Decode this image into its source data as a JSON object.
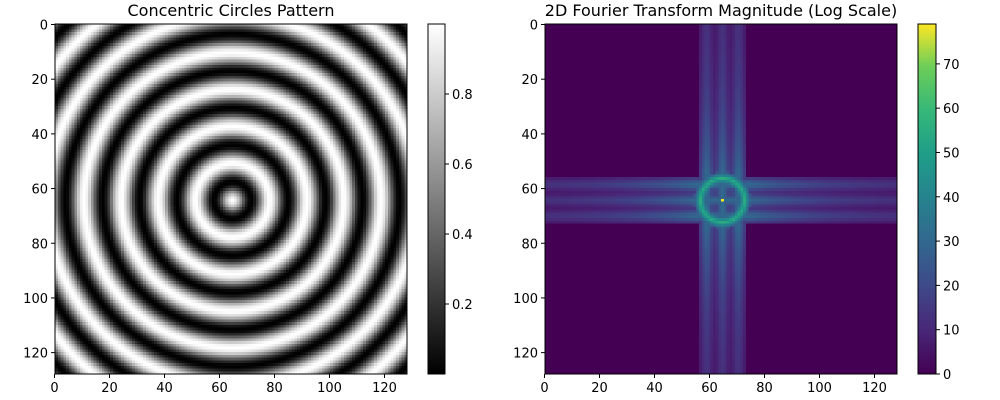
{
  "chart_data": [
    {
      "type": "heatmap",
      "title": "Concentric Circles Pattern",
      "xlabel": "",
      "ylabel": "",
      "shape": [
        128,
        128
      ],
      "xlim": [
        0,
        128
      ],
      "ylim": [
        128,
        0
      ],
      "x_ticks": [
        0,
        20,
        40,
        60,
        80,
        100,
        120
      ],
      "y_ticks": [
        0,
        20,
        40,
        60,
        80,
        100,
        120
      ],
      "x_tick_labels": [
        "0",
        "20",
        "40",
        "60",
        "80",
        "100",
        "120"
      ],
      "y_tick_labels": [
        "0",
        "20",
        "40",
        "60",
        "80",
        "100",
        "120"
      ],
      "center": [
        64,
        64
      ],
      "ring_spacing": 13.5,
      "function": "0.5 + 0.5*cos(2*pi*r/13.5)",
      "colormap": "gray",
      "colorbar": {
        "range": [
          0.0,
          1.0
        ],
        "ticks": [
          0.2,
          0.4,
          0.6,
          0.8
        ],
        "tick_labels": [
          "0.2",
          "0.4",
          "0.6",
          "0.8"
        ]
      }
    },
    {
      "type": "heatmap",
      "title": "2D Fourier Transform Magnitude (Log Scale)",
      "xlabel": "",
      "ylabel": "",
      "shape": [
        128,
        128
      ],
      "xlim": [
        0,
        128
      ],
      "ylim": [
        128,
        0
      ],
      "x_ticks": [
        0,
        20,
        40,
        60,
        80,
        100,
        120
      ],
      "y_ticks": [
        0,
        20,
        40,
        60,
        80,
        100,
        120
      ],
      "x_tick_labels": [
        "0",
        "20",
        "40",
        "60",
        "80",
        "100",
        "120"
      ],
      "y_tick_labels": [
        "0",
        "20",
        "40",
        "60",
        "80",
        "100",
        "120"
      ],
      "peak_center": [
        64,
        64
      ],
      "peak_value": 79,
      "ring_radius": 8,
      "ring_value": 55,
      "cross_band_value": 30,
      "background_value": 0,
      "colormap": "viridis",
      "colorbar": {
        "range": [
          0,
          79
        ],
        "ticks": [
          0,
          10,
          20,
          30,
          40,
          50,
          60,
          70
        ],
        "tick_labels": [
          "0",
          "10",
          "20",
          "30",
          "40",
          "50",
          "60",
          "70"
        ]
      }
    }
  ]
}
